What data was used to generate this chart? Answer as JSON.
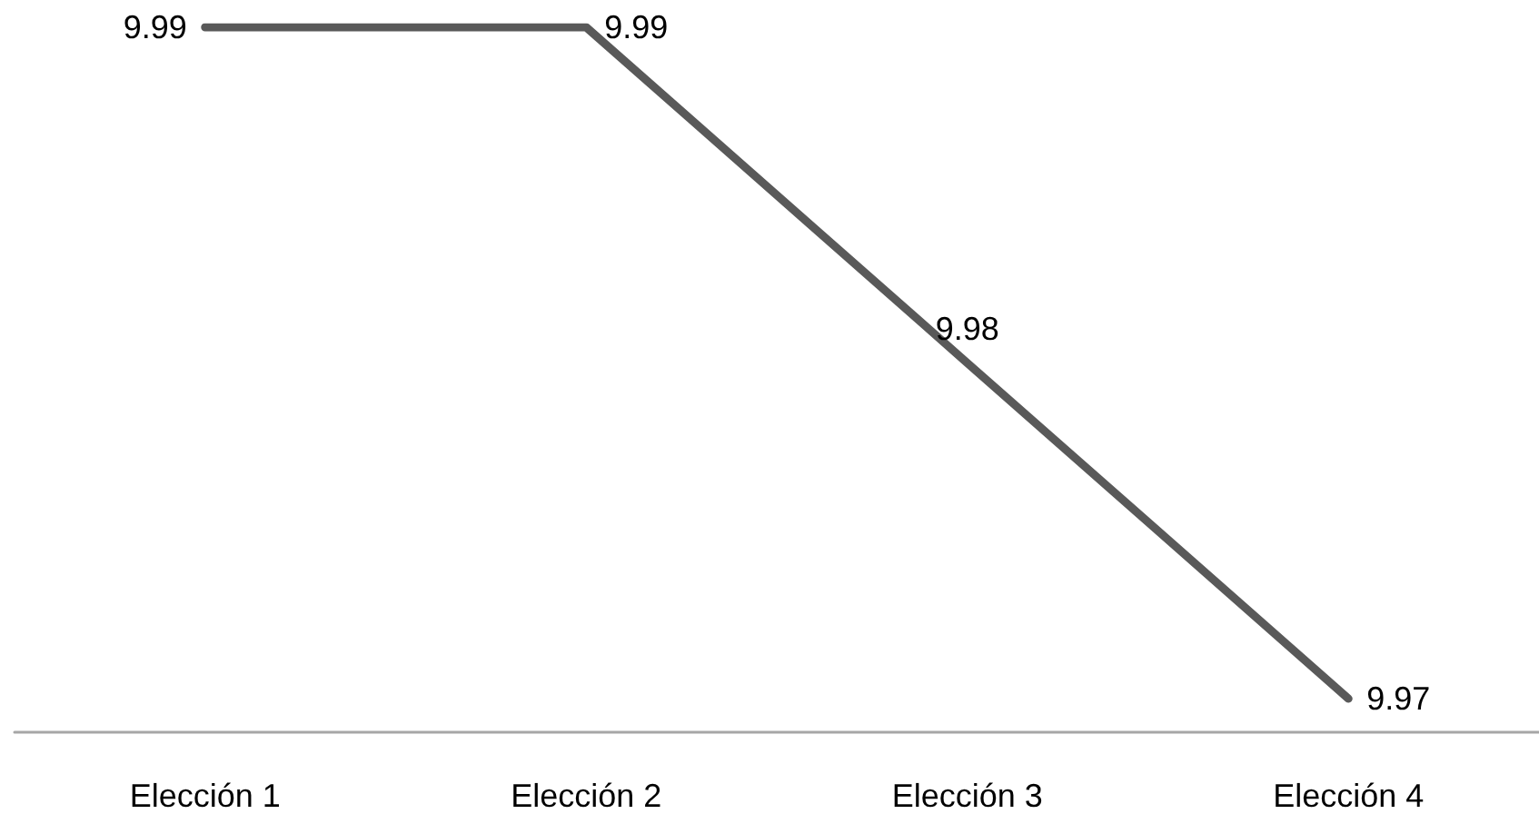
{
  "chart_data": {
    "type": "line",
    "categories": [
      "Elección 1",
      "Elección 2",
      "Elección 3",
      "Elección 4"
    ],
    "series": [
      {
        "color": "#595959",
        "values": [
          9.99,
          9.99,
          9.98,
          9.97
        ]
      }
    ],
    "tick_labels": "x",
    "data_labels": true,
    "marker": "none",
    "line_style": "solid",
    "grid": false
  }
}
